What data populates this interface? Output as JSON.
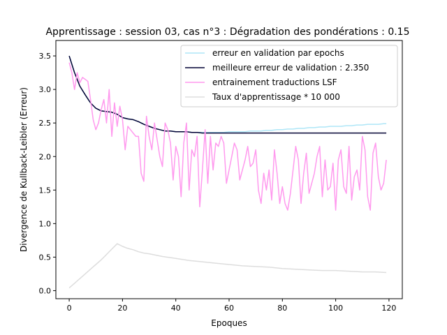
{
  "chart_data": {
    "type": "line",
    "title": "Apprentissage : session 03, cas n°3 : Dégradation des pondérations : 0.15",
    "xlabel": "Epoques",
    "ylabel": "Divergence de Kullback-Leibler (Erreur)",
    "xlim": [
      -5,
      125
    ],
    "ylim": [
      -0.12,
      3.73
    ],
    "xticks": [
      0,
      20,
      40,
      60,
      80,
      100,
      120
    ],
    "yticks": [
      0.0,
      0.5,
      1.0,
      1.5,
      2.0,
      2.5,
      3.0,
      3.5
    ],
    "ytick_labels": [
      "0.0",
      "0.5",
      "1.0",
      "1.5",
      "2.0",
      "2.5",
      "3.0",
      "3.5"
    ],
    "grid": false,
    "legend_position": "top-right",
    "series": [
      {
        "name": "erreur en validation par epochs",
        "color": "#aee6f7",
        "x": [
          0,
          2,
          4,
          6,
          8,
          10,
          12,
          14,
          16,
          18,
          20,
          22,
          24,
          26,
          28,
          30,
          32,
          34,
          36,
          38,
          40,
          42,
          44,
          46,
          48,
          50,
          52,
          54,
          56,
          58,
          60,
          62,
          64,
          66,
          68,
          70,
          72,
          74,
          76,
          78,
          80,
          82,
          84,
          86,
          88,
          90,
          92,
          94,
          96,
          98,
          100,
          102,
          104,
          106,
          108,
          110,
          112,
          114,
          116,
          118,
          119
        ],
        "y": [
          3.5,
          3.25,
          3.05,
          2.92,
          2.8,
          2.72,
          2.68,
          2.67,
          2.66,
          2.63,
          2.58,
          2.56,
          2.55,
          2.52,
          2.48,
          2.45,
          2.42,
          2.4,
          2.38,
          2.38,
          2.37,
          2.37,
          2.37,
          2.36,
          2.36,
          2.36,
          2.36,
          2.36,
          2.36,
          2.36,
          2.37,
          2.37,
          2.37,
          2.37,
          2.38,
          2.38,
          2.38,
          2.39,
          2.39,
          2.4,
          2.4,
          2.41,
          2.41,
          2.42,
          2.42,
          2.43,
          2.43,
          2.44,
          2.44,
          2.45,
          2.45,
          2.45,
          2.46,
          2.46,
          2.47,
          2.47,
          2.48,
          2.48,
          2.48,
          2.49,
          2.49
        ]
      },
      {
        "name": "meilleure erreur de validation : 2.350",
        "color": "#000033",
        "x": [
          0,
          2,
          4,
          6,
          8,
          10,
          12,
          14,
          16,
          18,
          20,
          22,
          24,
          26,
          28,
          30,
          32,
          34,
          36,
          38,
          40,
          42,
          44,
          46,
          48,
          50,
          52,
          54,
          56,
          58,
          60,
          70,
          80,
          90,
          100,
          110,
          119
        ],
        "y": [
          3.5,
          3.25,
          3.05,
          2.92,
          2.8,
          2.72,
          2.68,
          2.67,
          2.66,
          2.63,
          2.58,
          2.56,
          2.55,
          2.52,
          2.48,
          2.45,
          2.42,
          2.4,
          2.38,
          2.38,
          2.37,
          2.37,
          2.37,
          2.36,
          2.36,
          2.35,
          2.35,
          2.35,
          2.35,
          2.35,
          2.35,
          2.35,
          2.35,
          2.35,
          2.35,
          2.35,
          2.35
        ]
      },
      {
        "name": "entrainement traductions LSF",
        "color": "#ff99ee",
        "x": [
          0,
          1,
          2,
          3,
          4,
          5,
          6,
          7,
          8,
          9,
          10,
          11,
          12,
          13,
          14,
          15,
          16,
          17,
          18,
          19,
          20,
          21,
          22,
          23,
          24,
          25,
          26,
          27,
          28,
          29,
          30,
          31,
          32,
          33,
          34,
          35,
          36,
          37,
          38,
          39,
          40,
          41,
          42,
          43,
          44,
          45,
          46,
          47,
          48,
          49,
          50,
          51,
          52,
          53,
          54,
          55,
          56,
          57,
          58,
          59,
          60,
          61,
          62,
          63,
          64,
          65,
          66,
          67,
          68,
          69,
          70,
          71,
          72,
          73,
          74,
          75,
          76,
          77,
          78,
          79,
          80,
          81,
          82,
          83,
          84,
          85,
          86,
          87,
          88,
          89,
          90,
          91,
          92,
          93,
          94,
          95,
          96,
          97,
          98,
          99,
          100,
          101,
          102,
          103,
          104,
          105,
          106,
          107,
          108,
          109,
          110,
          111,
          112,
          113,
          114,
          115,
          116,
          117,
          118,
          119
        ],
        "y": [
          3.4,
          3.25,
          3.0,
          3.25,
          3.1,
          3.18,
          3.15,
          3.12,
          2.85,
          2.55,
          2.4,
          2.5,
          2.7,
          2.85,
          2.5,
          3.0,
          2.3,
          2.8,
          2.45,
          2.75,
          2.55,
          2.1,
          2.45,
          2.4,
          2.35,
          2.3,
          2.3,
          1.75,
          1.63,
          2.6,
          2.3,
          2.1,
          2.5,
          2.25,
          2.0,
          1.85,
          2.5,
          2.4,
          2.2,
          1.65,
          2.15,
          2.0,
          1.4,
          2.2,
          2.5,
          1.5,
          2.1,
          2.0,
          2.3,
          1.25,
          1.8,
          2.4,
          1.6,
          2.3,
          1.8,
          2.2,
          2.15,
          2.3,
          2.2,
          1.6,
          1.8,
          2.0,
          2.2,
          2.1,
          1.65,
          1.8,
          1.95,
          2.15,
          1.85,
          1.9,
          2.1,
          1.5,
          1.3,
          1.75,
          1.5,
          1.8,
          1.35,
          2.1,
          1.75,
          1.3,
          1.55,
          1.3,
          1.2,
          1.45,
          1.8,
          2.15,
          1.95,
          1.3,
          1.75,
          2.05,
          1.45,
          1.6,
          1.75,
          2.0,
          2.15,
          1.4,
          1.95,
          1.5,
          1.55,
          1.9,
          1.2,
          1.95,
          2.1,
          1.55,
          1.45,
          2.15,
          1.35,
          1.7,
          1.8,
          1.5,
          2.3,
          2.1,
          1.4,
          1.2,
          2.05,
          2.2,
          1.7,
          1.5,
          1.6,
          1.95
        ]
      },
      {
        "name": "Taux d'apprentissage * 10 000",
        "color": "#dddddd",
        "x": [
          0,
          2,
          4,
          6,
          8,
          10,
          12,
          14,
          16,
          18,
          20,
          22,
          24,
          26,
          28,
          30,
          35,
          40,
          45,
          50,
          55,
          60,
          65,
          70,
          75,
          80,
          85,
          90,
          95,
          100,
          105,
          110,
          115,
          119
        ],
        "y": [
          0.04,
          0.11,
          0.18,
          0.25,
          0.32,
          0.39,
          0.46,
          0.54,
          0.62,
          0.7,
          0.66,
          0.63,
          0.61,
          0.58,
          0.56,
          0.55,
          0.51,
          0.48,
          0.45,
          0.43,
          0.41,
          0.39,
          0.37,
          0.36,
          0.35,
          0.33,
          0.32,
          0.31,
          0.3,
          0.3,
          0.29,
          0.28,
          0.28,
          0.27
        ]
      }
    ]
  }
}
